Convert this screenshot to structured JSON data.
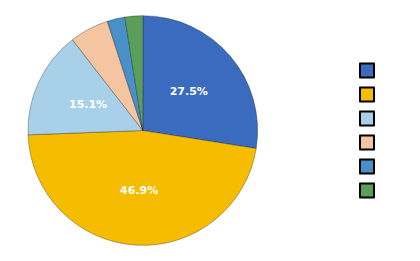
{
  "chart_data": {
    "type": "pie",
    "values": [
      27.5,
      46.9,
      15.1,
      5.5,
      2.5,
      2.5
    ],
    "value_labels": [
      "27.5%",
      "46.9%",
      "15.1%",
      null,
      null,
      null
    ],
    "colors": [
      "#3a6bbf",
      "#f5bc00",
      "#a8d0e8",
      "#f5c4a0",
      "#4a90c8",
      "#5a9e5a"
    ],
    "data_labels": true,
    "legend": "right"
  }
}
